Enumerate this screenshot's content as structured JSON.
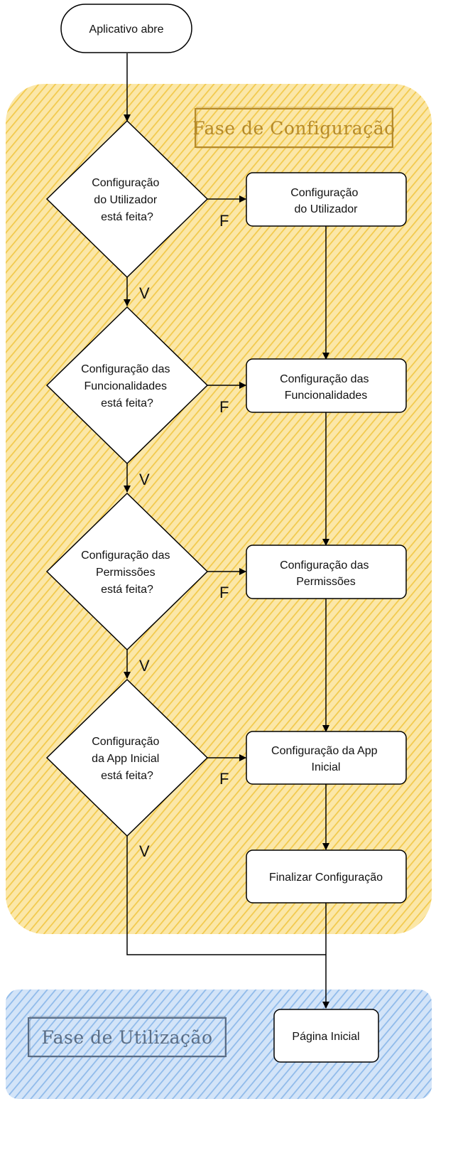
{
  "colors": {
    "config_phase_fill": "#f7d87a",
    "config_phase_hatch": "#f2c94c",
    "config_title_text": "#b58a2a",
    "usage_phase_fill": "#a9c8ee",
    "usage_phase_hatch": "#7fb0e8",
    "usage_title_text": "#5a6d85",
    "stroke": "#000000"
  },
  "phases": {
    "config": {
      "title": "Fase de Configuração"
    },
    "usage": {
      "title": "Fase de Utilização"
    }
  },
  "nodes": {
    "start": {
      "lines": [
        "Aplicativo abre"
      ]
    },
    "d1": {
      "lines": [
        "Configuração",
        "do Utilizador",
        "está feita?"
      ]
    },
    "d2": {
      "lines": [
        "Configuração das",
        "Funcionalidades",
        "está feita?"
      ]
    },
    "d3": {
      "lines": [
        "Configuração das",
        "Permissões",
        "está feita?"
      ]
    },
    "d4": {
      "lines": [
        "Configuração",
        "da App Inicial",
        "está feita?"
      ]
    },
    "p1": {
      "lines": [
        "Configuração",
        "do Utilizador"
      ]
    },
    "p2": {
      "lines": [
        "Configuração das",
        "Funcionalidades"
      ]
    },
    "p3": {
      "lines": [
        "Configuração das",
        "Permissões"
      ]
    },
    "p4": {
      "lines": [
        "Configuração da App",
        "Inicial"
      ]
    },
    "finish": {
      "lines": [
        "Finalizar Configuração"
      ]
    },
    "home": {
      "lines": [
        "Página Inicial"
      ]
    }
  },
  "edge_labels": {
    "false_label": "F",
    "true_label": "V"
  }
}
